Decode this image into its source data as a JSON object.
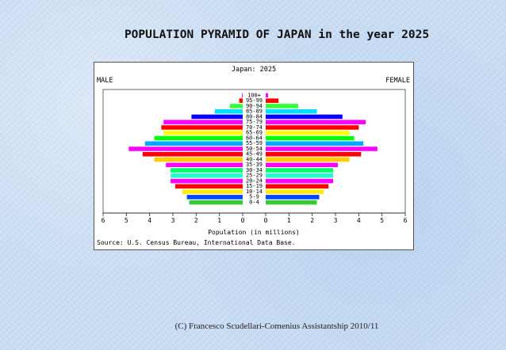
{
  "slide": {
    "title": "POPULATION PYRAMID OF JAPAN in the year 2025",
    "footer": "(C) Francesco Scudellari-Comenius Assistantship 2010/11"
  },
  "chart_data": {
    "type": "bar",
    "title": "Japan: 2025",
    "left_label": "MALE",
    "right_label": "FEMALE",
    "xlabel": "Population (in millions)",
    "source": "Source: U.S. Census Bureau, International Data Base.",
    "xlim": [
      0,
      6
    ],
    "x_ticks": [
      "6",
      "5",
      "4",
      "3",
      "2",
      "1",
      "0",
      "0",
      "1",
      "2",
      "3",
      "4",
      "5",
      "6"
    ],
    "categories": [
      "0-4",
      "5-9",
      "10-14",
      "15-19",
      "20-24",
      "25-29",
      "30-34",
      "35-39",
      "40-44",
      "45-49",
      "50-54",
      "55-59",
      "60-64",
      "65-69",
      "70-74",
      "75-79",
      "80-84",
      "85-89",
      "90-94",
      "95-99",
      "100+"
    ],
    "series": [
      {
        "name": "MALE",
        "values": [
          2.3,
          2.4,
          2.6,
          2.9,
          3.1,
          3.1,
          3.1,
          3.3,
          3.8,
          4.3,
          4.9,
          4.2,
          3.8,
          3.4,
          3.5,
          3.4,
          2.2,
          1.2,
          0.55,
          0.15,
          0.03
        ]
      },
      {
        "name": "FEMALE",
        "values": [
          2.2,
          2.3,
          2.5,
          2.7,
          2.9,
          2.9,
          2.9,
          3.1,
          3.6,
          4.1,
          4.8,
          4.2,
          3.8,
          3.6,
          4.0,
          4.3,
          3.3,
          2.2,
          1.4,
          0.55,
          0.1
        ]
      }
    ],
    "colors": [
      "#33cc33",
      "#0044ff",
      "#ffee00",
      "#ff0000",
      "#ff00ff",
      "#22ffcc",
      "#00ff66",
      "#ff00ff",
      "#ffcc00",
      "#ff0000",
      "#ff00ff",
      "#00aaff",
      "#00ff00",
      "#ffff00",
      "#ff0000",
      "#ff00ff",
      "#0000ff",
      "#00e0ff",
      "#33ff33",
      "#ff0000",
      "#ff00ff"
    ],
    "grid": false,
    "legend": "none"
  }
}
